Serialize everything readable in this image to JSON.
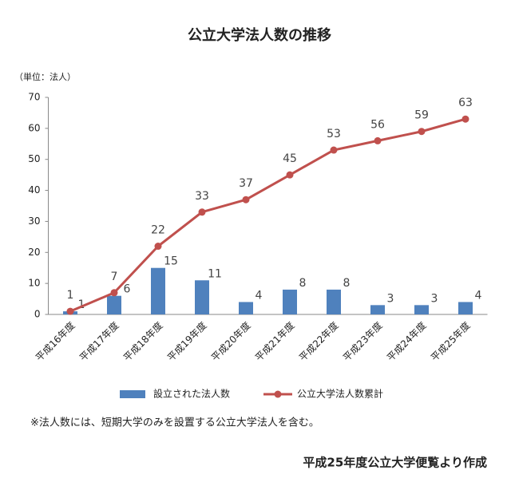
{
  "chart_data": {
    "type": "bar",
    "title": "公立大学法人数の推移",
    "unit_label": "（単位：法人）",
    "categories": [
      "平成16年度",
      "平成17年度",
      "平成18年度",
      "平成19年度",
      "平成20年度",
      "平成21年度",
      "平成22年度",
      "平成23年度",
      "平成24年度",
      "平成25年度"
    ],
    "series": [
      {
        "name": "設立された法人数",
        "type": "bar",
        "color": "#4f81bd",
        "values": [
          1,
          6,
          15,
          11,
          4,
          8,
          8,
          3,
          3,
          4
        ]
      },
      {
        "name": "公立大学法人数累計",
        "type": "line",
        "color": "#c0504d",
        "values": [
          1,
          7,
          22,
          33,
          37,
          45,
          53,
          56,
          59,
          63
        ]
      }
    ],
    "ylim": [
      0,
      70
    ],
    "yticks": [
      0,
      10,
      20,
      30,
      40,
      50,
      60,
      70
    ],
    "grid": false,
    "legend": "bottom",
    "note": "※法人数には、短期大学のみを設置する公立大学法人を含む。",
    "source": "平成25年度公立大学便覧より作成"
  }
}
